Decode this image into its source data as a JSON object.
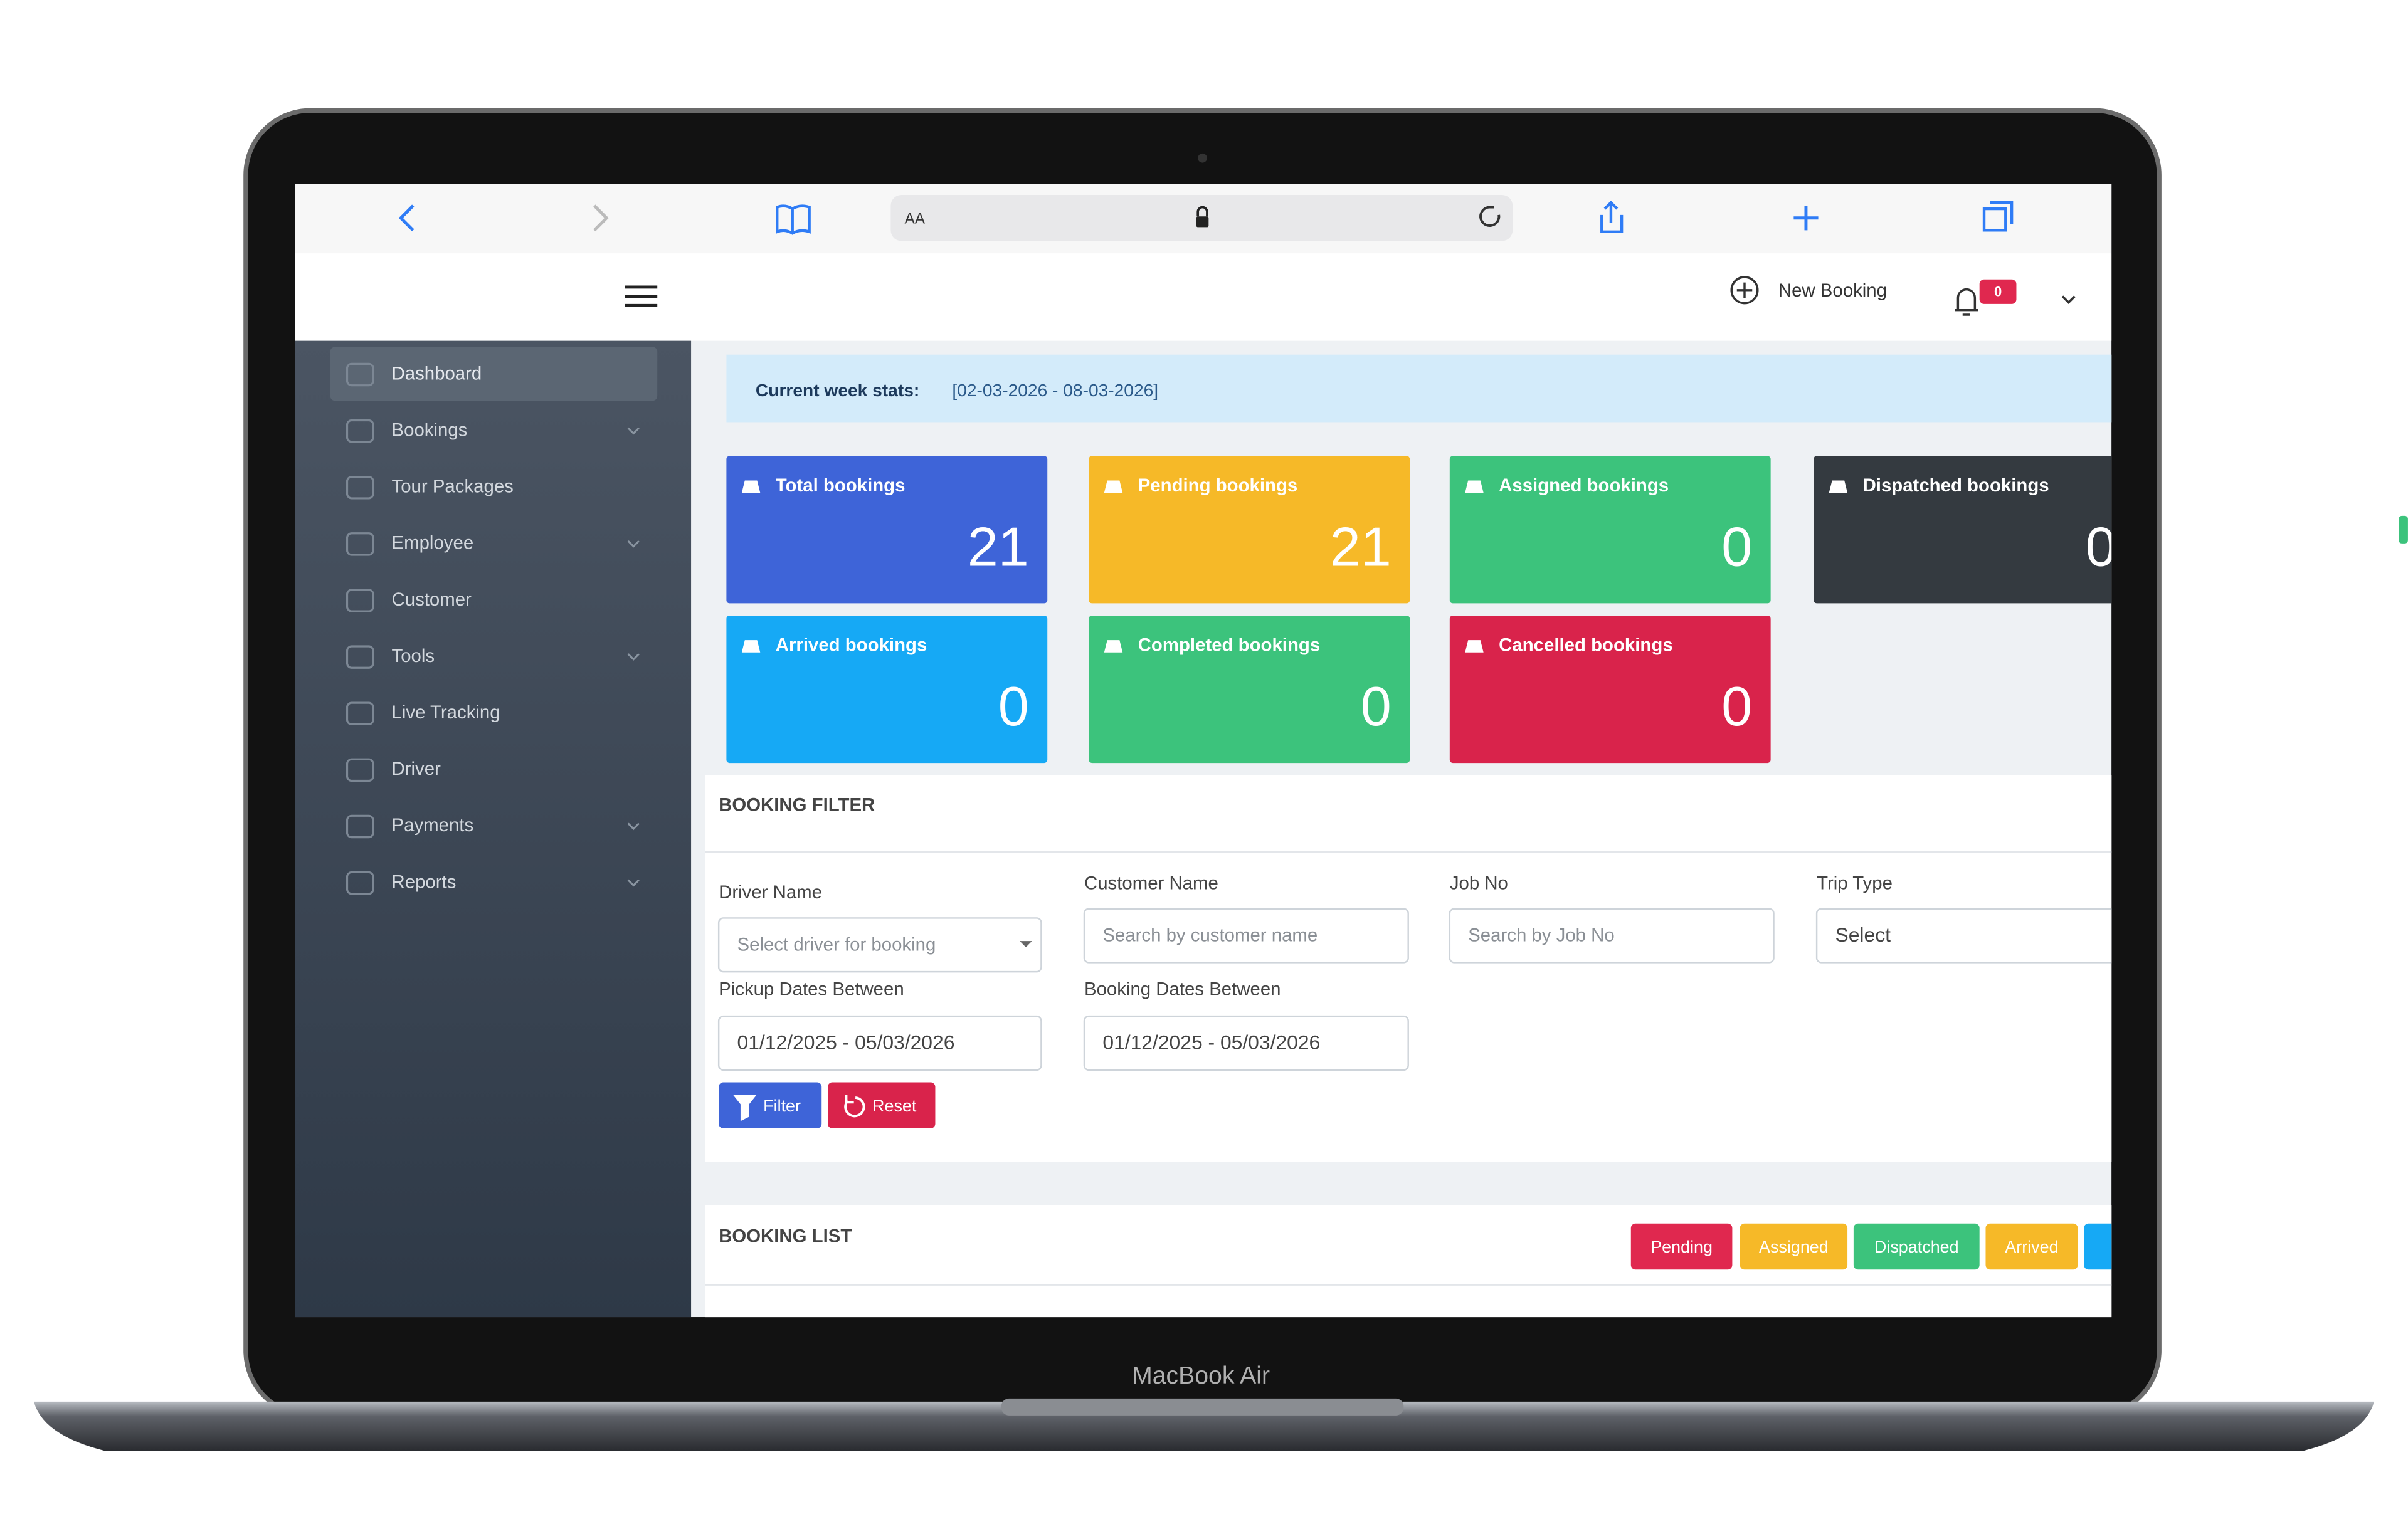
{
  "browser": {
    "address_label": "AA"
  },
  "header": {
    "new_booking": "New Booking",
    "notification_count": 0
  },
  "sidebar": {
    "items": [
      {
        "label": "Dashboard",
        "active": true,
        "expandable": false
      },
      {
        "label": "Bookings",
        "active": false,
        "expandable": true
      },
      {
        "label": "Tour Packages",
        "active": false,
        "expandable": false
      },
      {
        "label": "Employee",
        "active": false,
        "expandable": true
      },
      {
        "label": "Customer",
        "active": false,
        "expandable": false
      },
      {
        "label": "Tools",
        "active": false,
        "expandable": true
      },
      {
        "label": "Live Tracking",
        "active": false,
        "expandable": false
      },
      {
        "label": "Driver",
        "active": false,
        "expandable": false
      },
      {
        "label": "Payments",
        "active": false,
        "expandable": true
      },
      {
        "label": "Reports",
        "active": false,
        "expandable": true
      }
    ]
  },
  "week_stats": {
    "label": "Current week stats:",
    "range": "[02-03-2026 - 08-03-2026]"
  },
  "stat_cards": [
    {
      "label": "Total bookings",
      "value": 21,
      "color": "#3e64d8"
    },
    {
      "label": "Pending bookings",
      "value": 21,
      "color": "#f6b928"
    },
    {
      "label": "Assigned bookings",
      "value": 0,
      "color": "#3cc37c"
    },
    {
      "label": "Dispatched bookings",
      "value": 0,
      "color": "#343a40"
    },
    {
      "label": "Arrived bookings",
      "value": 0,
      "color": "#16a9f5"
    },
    {
      "label": "Completed bookings",
      "value": 0,
      "color": "#3cc37c"
    },
    {
      "label": "Cancelled bookings",
      "value": 0,
      "color": "#d9234b"
    }
  ],
  "booking_filter": {
    "title": "BOOKING FILTER",
    "fields": [
      {
        "label": "Driver Name",
        "placeholder": "Select driver for booking"
      },
      {
        "label": "Customer Name",
        "placeholder": "Search by customer name"
      },
      {
        "label": "Job No",
        "placeholder": "Search by Job No"
      },
      {
        "label": "Trip Type",
        "value": "Select"
      },
      {
        "label": "Pickup Dates Between",
        "value": "01/12/2025 - 05/03/2026"
      },
      {
        "label": "Booking Dates Between",
        "value": "01/12/2025 - 05/03/2026"
      }
    ],
    "buttons": [
      {
        "label": "Filter",
        "color": "#3e64d8"
      },
      {
        "label": "Reset",
        "color": "#d9234b"
      }
    ]
  },
  "booking_list": {
    "title": "BOOKING LIST",
    "status_chips": [
      {
        "label": "Pending",
        "color": "#e0284f"
      },
      {
        "label": "Assigned",
        "color": "#f6b928"
      },
      {
        "label": "Dispatched",
        "color": "#3cc37c"
      },
      {
        "label": "Arrived",
        "color": "#f6b928"
      }
    ]
  },
  "device_label": "MacBook Air"
}
